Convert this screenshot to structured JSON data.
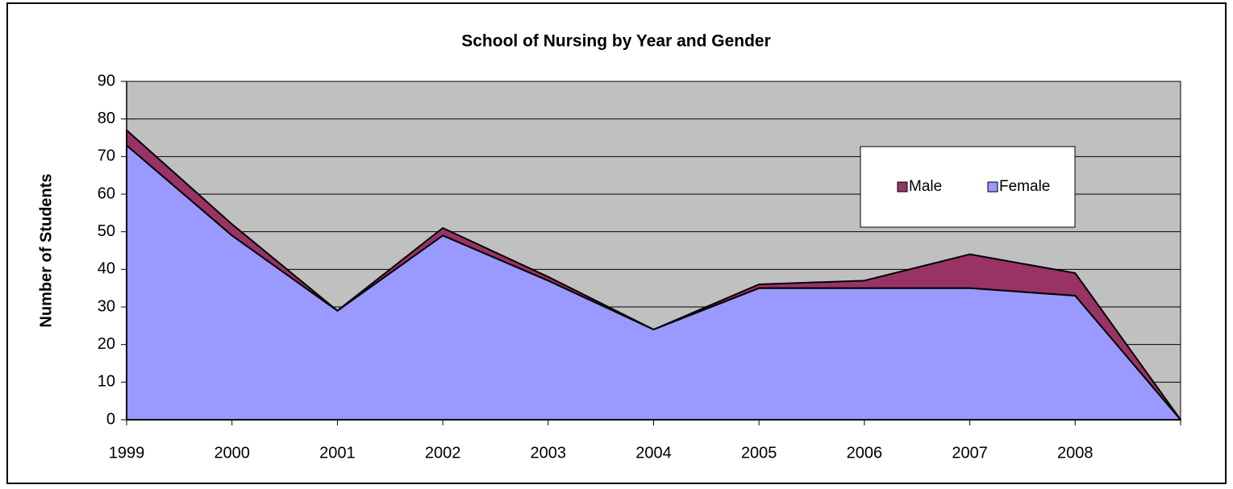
{
  "chart_data": {
    "type": "stacked_area",
    "title": "School of Nursing by Year and Gender",
    "y_label": "Number of Students",
    "categories": [
      "1999",
      "2000",
      "2001",
      "2002",
      "2003",
      "2004",
      "2005",
      "2006",
      "2007",
      "2008",
      null
    ],
    "series": [
      {
        "name": "Female",
        "color": "#9999ff",
        "values": [
          73,
          49,
          29,
          49,
          37,
          24,
          35,
          35,
          35,
          33,
          0
        ]
      },
      {
        "name": "Male",
        "color": "#993366",
        "values": [
          4,
          3,
          0,
          2,
          1,
          0,
          1,
          2,
          9,
          6,
          0
        ]
      }
    ],
    "ylim": [
      0,
      90
    ],
    "yticks": [
      0,
      10,
      20,
      30,
      40,
      50,
      60,
      70,
      80,
      90
    ],
    "grid": true,
    "plot_background": "#c0c0c0",
    "legend": "right"
  }
}
